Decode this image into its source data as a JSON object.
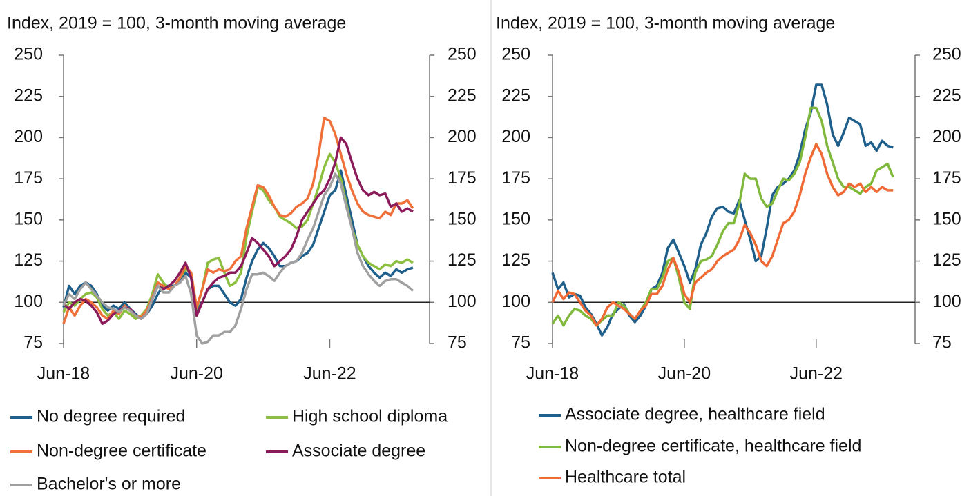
{
  "chart_data": [
    {
      "type": "line",
      "title": "Index, 2019 = 100, 3-month moving average",
      "categories": [
        "Jun-18",
        null,
        null,
        null,
        null,
        null,
        null,
        null,
        null,
        null,
        null,
        null,
        null,
        null,
        null,
        null,
        null,
        null,
        null,
        null,
        null,
        null,
        null,
        null,
        "Jun-20",
        null,
        null,
        null,
        null,
        null,
        null,
        null,
        null,
        null,
        null,
        null,
        null,
        null,
        null,
        null,
        null,
        null,
        null,
        null,
        null,
        null,
        null,
        null,
        "Jun-22",
        null,
        null,
        null,
        null,
        null,
        null,
        null,
        null,
        null,
        null,
        null,
        null,
        null,
        null,
        null
      ],
      "ylim": [
        75,
        250
      ],
      "yticks": [
        75,
        100,
        125,
        150,
        175,
        200,
        225,
        250
      ],
      "reference_line": 100,
      "series": [
        {
          "name": "No degree required",
          "color": "#1f5f8b",
          "values": [
            97,
            110,
            105,
            110,
            112,
            110,
            105,
            98,
            95,
            98,
            96,
            100,
            96,
            93,
            90,
            93,
            98,
            105,
            110,
            110,
            110,
            113,
            118,
            115,
            95,
            100,
            108,
            110,
            110,
            105,
            100,
            98,
            102,
            115,
            125,
            132,
            136,
            133,
            128,
            122,
            122,
            124,
            125,
            128,
            130,
            135,
            145,
            155,
            165,
            168,
            180,
            165,
            150,
            135,
            128,
            122,
            118,
            115,
            118,
            116,
            120,
            118,
            120,
            121
          ]
        },
        {
          "name": "High school diploma",
          "color": "#8cbf3f",
          "values": [
            94,
            100,
            98,
            102,
            105,
            106,
            103,
            96,
            92,
            94,
            90,
            95,
            93,
            90,
            92,
            96,
            105,
            117,
            112,
            108,
            110,
            115,
            120,
            118,
            96,
            108,
            124,
            126,
            127,
            118,
            110,
            112,
            118,
            140,
            155,
            170,
            168,
            162,
            158,
            152,
            150,
            148,
            145,
            146,
            150,
            160,
            170,
            182,
            190,
            185,
            175,
            160,
            145,
            135,
            128,
            124,
            122,
            120,
            123,
            122,
            125,
            124,
            126,
            124
          ]
        },
        {
          "name": "Non-degree certificate",
          "color": "#f0703a",
          "values": [
            87,
            97,
            92,
            98,
            102,
            100,
            97,
            92,
            90,
            95,
            93,
            98,
            95,
            92,
            91,
            95,
            103,
            112,
            110,
            108,
            110,
            115,
            122,
            118,
            97,
            108,
            120,
            118,
            120,
            119,
            120,
            125,
            128,
            145,
            158,
            171,
            170,
            165,
            158,
            153,
            152,
            154,
            158,
            160,
            163,
            172,
            190,
            212,
            210,
            202,
            190,
            178,
            168,
            160,
            155,
            153,
            152,
            151,
            155,
            153,
            160,
            160,
            162,
            157
          ]
        },
        {
          "name": "Associate degree",
          "color": "#8b1a5a",
          "values": [
            99,
            96,
            100,
            102,
            101,
            98,
            94,
            87,
            89,
            93,
            95,
            97,
            96,
            92,
            90,
            93,
            102,
            110,
            108,
            110,
            113,
            118,
            124,
            115,
            92,
            100,
            108,
            112,
            115,
            116,
            118,
            118,
            122,
            130,
            139,
            136,
            132,
            128,
            122,
            125,
            128,
            132,
            140,
            150,
            155,
            160,
            165,
            168,
            175,
            185,
            200,
            196,
            185,
            175,
            168,
            165,
            167,
            165,
            166,
            158,
            160,
            155,
            157,
            155
          ]
        },
        {
          "name": "Bachelor's or more",
          "color": "#a0a0a0",
          "values": [
            98,
            105,
            102,
            108,
            112,
            108,
            104,
            100,
            97,
            96,
            94,
            97,
            95,
            92,
            90,
            93,
            102,
            110,
            106,
            106,
            110,
            112,
            116,
            105,
            80,
            75,
            76,
            80,
            80,
            82,
            82,
            86,
            96,
            108,
            117,
            117,
            118,
            116,
            113,
            118,
            122,
            124,
            125,
            130,
            138,
            145,
            155,
            165,
            170,
            178,
            172,
            158,
            145,
            130,
            122,
            117,
            113,
            110,
            113,
            114,
            114,
            112,
            110,
            107
          ]
        }
      ]
    },
    {
      "type": "line",
      "title": "Index, 2019 = 100, 3-month moving average",
      "categories": [
        "Jun-18",
        null,
        null,
        null,
        null,
        null,
        null,
        null,
        null,
        null,
        null,
        null,
        null,
        null,
        null,
        null,
        null,
        null,
        null,
        null,
        null,
        null,
        null,
        null,
        "Jun-20",
        null,
        null,
        null,
        null,
        null,
        null,
        null,
        null,
        null,
        null,
        null,
        null,
        null,
        null,
        null,
        null,
        null,
        null,
        null,
        null,
        null,
        null,
        null,
        "Jun-22",
        null,
        null,
        null,
        null,
        null,
        null,
        null,
        null,
        null,
        null,
        null,
        null,
        null,
        null
      ],
      "ylim": [
        75,
        250
      ],
      "yticks": [
        75,
        100,
        125,
        150,
        175,
        200,
        225,
        250
      ],
      "reference_line": 100,
      "series": [
        {
          "name": "Associate degree, healthcare field",
          "color": "#1f5f8b",
          "values": [
            118,
            108,
            112,
            103,
            105,
            104,
            97,
            93,
            87,
            80,
            85,
            93,
            96,
            99,
            92,
            88,
            92,
            98,
            108,
            110,
            118,
            133,
            138,
            130,
            122,
            112,
            120,
            135,
            142,
            152,
            157,
            158,
            155,
            154,
            162,
            150,
            138,
            125,
            128,
            145,
            165,
            170,
            172,
            175,
            180,
            190,
            205,
            215,
            232,
            232,
            220,
            202,
            195,
            203,
            212,
            210,
            208,
            195,
            197,
            192,
            198,
            195,
            194
          ]
        },
        {
          "name": "Non-degree certificate, healthcare field",
          "color": "#7fb83a",
          "values": [
            87,
            92,
            86,
            92,
            96,
            95,
            92,
            90,
            86,
            89,
            92,
            92,
            100,
            98,
            93,
            90,
            95,
            100,
            108,
            108,
            115,
            125,
            127,
            115,
            100,
            96,
            118,
            125,
            126,
            128,
            135,
            143,
            148,
            148,
            160,
            178,
            175,
            175,
            163,
            158,
            160,
            168,
            175,
            174,
            178,
            185,
            200,
            218,
            218,
            210,
            195,
            185,
            175,
            170,
            170,
            168,
            166,
            170,
            172,
            180,
            182,
            184,
            176
          ]
        },
        {
          "name": "Healthcare total",
          "color": "#ef6a35",
          "values": [
            100,
            107,
            102,
            106,
            105,
            100,
            95,
            92,
            86,
            90,
            97,
            100,
            98,
            96,
            93,
            90,
            95,
            98,
            105,
            105,
            110,
            120,
            127,
            118,
            105,
            100,
            112,
            115,
            118,
            120,
            125,
            128,
            130,
            132,
            138,
            147,
            142,
            135,
            125,
            122,
            128,
            138,
            148,
            150,
            155,
            165,
            178,
            188,
            196,
            190,
            178,
            170,
            165,
            167,
            172,
            170,
            172,
            167,
            170,
            167,
            170,
            168,
            168
          ]
        }
      ]
    }
  ]
}
